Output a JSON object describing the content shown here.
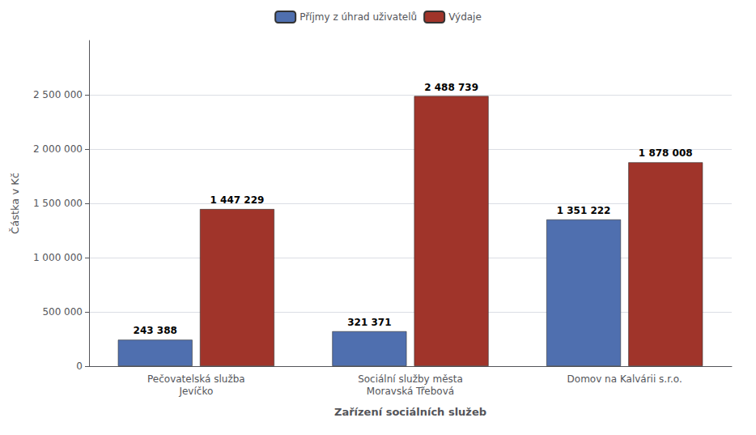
{
  "chart_data": {
    "type": "bar",
    "categories": [
      "Pečovatelská služba\nJevíčko",
      "Sociální služby města\nMoravská Třebová",
      "Domov na Kalvárii s.r.o."
    ],
    "series": [
      {
        "name": "Příjmy z úhrad uživatelů",
        "color": "#4F6FAF",
        "values": [
          243388,
          321371,
          1351222
        ],
        "value_labels": [
          "243 388",
          "321 371",
          "1 351 222"
        ]
      },
      {
        "name": "Výdaje",
        "color": "#A0342A",
        "values": [
          1447229,
          2488739,
          1878008
        ],
        "value_labels": [
          "1 447 229",
          "2 488 739",
          "1 878 008"
        ]
      }
    ],
    "xlabel": "Zařízení sociálních služeb",
    "ylabel": "Částka v Kč",
    "ylim": [
      0,
      3000000
    ],
    "yticks": [
      0,
      {
        "value": 500000,
        "label": "500 000"
      },
      {
        "value": 1000000,
        "label": "1 000 000"
      },
      {
        "value": 1500000,
        "label": "1 500 000"
      },
      {
        "value": 2000000,
        "label": "2 000 000"
      },
      {
        "value": 2500000,
        "label": "2 500 000"
      }
    ],
    "grid": true,
    "legend": "top",
    "data_labels": true
  }
}
